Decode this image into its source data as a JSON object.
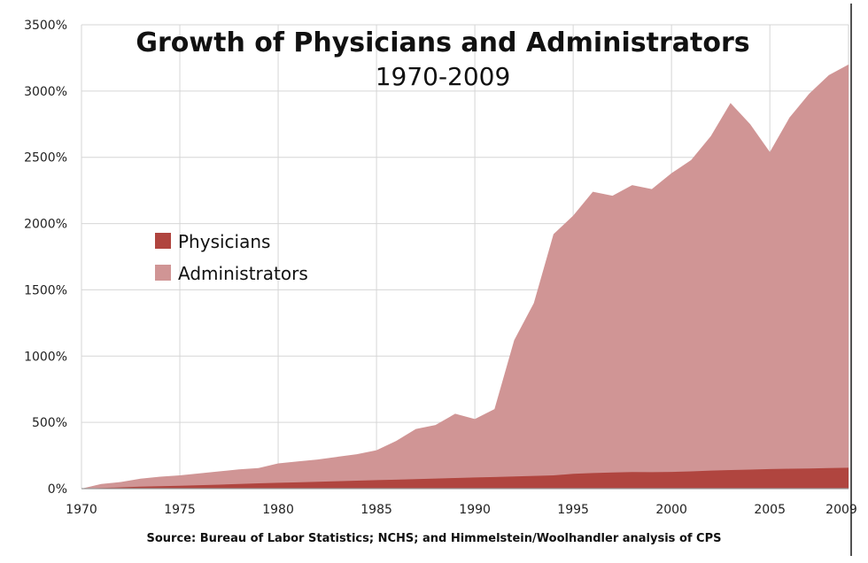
{
  "chart_data": {
    "type": "area",
    "title": "Growth of Physicians and Administrators",
    "subtitle": "1970-2009",
    "source": "Source: Bureau of Labor Statistics; NCHS; and Himmelstein/Woolhandler analysis of CPS",
    "xlabel": "",
    "ylabel": "",
    "xlim": [
      1970,
      2009
    ],
    "ylim": [
      0,
      3500
    ],
    "y_ticks": [
      0,
      500,
      1000,
      1500,
      2000,
      2500,
      3000,
      3500
    ],
    "y_tick_labels": [
      "0%",
      "500%",
      "1000%",
      "1500%",
      "2000%",
      "2500%",
      "3000%",
      "3500%"
    ],
    "x_ticks": [
      1970,
      1975,
      1980,
      1985,
      1990,
      1995,
      2000,
      2005,
      2009
    ],
    "x_tick_labels": [
      "1970",
      "1975",
      "1980",
      "1985",
      "1990",
      "1995",
      "2000",
      "2005",
      "2009"
    ],
    "grid": true,
    "legend_position": "left-middle",
    "x": [
      1970,
      1971,
      1972,
      1973,
      1974,
      1975,
      1976,
      1977,
      1978,
      1979,
      1980,
      1981,
      1982,
      1983,
      1984,
      1985,
      1986,
      1987,
      1988,
      1989,
      1990,
      1991,
      1992,
      1993,
      1994,
      1995,
      1996,
      1997,
      1998,
      1999,
      2000,
      2001,
      2002,
      2003,
      2004,
      2005,
      2006,
      2007,
      2008,
      2009
    ],
    "series": [
      {
        "name": "Physicians",
        "color": "#b0453f",
        "values": [
          0,
          5,
          10,
          15,
          18,
          22,
          26,
          30,
          35,
          40,
          44,
          48,
          52,
          56,
          60,
          64,
          68,
          72,
          76,
          80,
          84,
          88,
          92,
          96,
          100,
          112,
          118,
          122,
          125,
          124,
          126,
          130,
          136,
          140,
          144,
          148,
          150,
          152,
          155,
          158
        ]
      },
      {
        "name": "Administrators",
        "color": "#d09595",
        "values": [
          0,
          35,
          50,
          75,
          90,
          100,
          115,
          130,
          145,
          155,
          190,
          205,
          220,
          240,
          260,
          290,
          360,
          450,
          480,
          565,
          525,
          600,
          1120,
          1400,
          1920,
          2060,
          2240,
          2210,
          2290,
          2260,
          2380,
          2480,
          2660,
          2910,
          2750,
          2540,
          2800,
          2980,
          3120,
          3200
        ]
      }
    ]
  }
}
